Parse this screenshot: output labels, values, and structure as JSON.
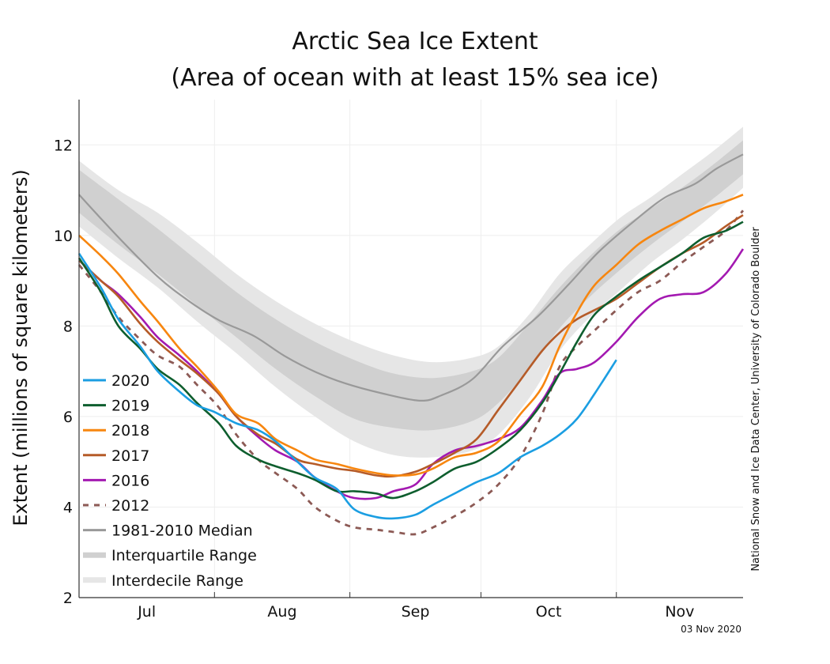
{
  "chart_data": {
    "type": "line",
    "title": "Arctic Sea Ice Extent",
    "subtitle": "(Area of ocean with at least 15% sea ice)",
    "xlabel": "",
    "ylabel": "Extent (millions of square kilometers)",
    "ylim": [
      2,
      13
    ],
    "yticks": [
      2,
      4,
      6,
      8,
      10,
      12
    ],
    "x_unit": "days since Jul 1",
    "xlim": [
      0,
      152
    ],
    "month_ticks": [
      {
        "label": "Jul",
        "start": 0,
        "end": 31
      },
      {
        "label": "Aug",
        "start": 31,
        "end": 62
      },
      {
        "label": "Sep",
        "start": 62,
        "end": 92
      },
      {
        "label": "Oct",
        "start": 92,
        "end": 123
      },
      {
        "label": "Nov",
        "start": 123,
        "end": 152
      }
    ],
    "grid": true,
    "legend_position": "bottom-left",
    "credit": "National Snow and Ice Data Center, University of Colorado Boulder",
    "date_stamp": "03 Nov 2020",
    "bands": [
      {
        "name": "Interdecile Range",
        "color": "#e6e6e6",
        "x": [
          0,
          9,
          18,
          27,
          36,
          45,
          54,
          63,
          72,
          81,
          90,
          96,
          103,
          110,
          117,
          124,
          131,
          138,
          145,
          152
        ],
        "upper": [
          11.65,
          11.0,
          10.5,
          9.85,
          9.15,
          8.55,
          8.05,
          7.65,
          7.35,
          7.2,
          7.3,
          7.55,
          8.25,
          9.15,
          9.8,
          10.4,
          10.85,
          11.35,
          11.85,
          12.4
        ],
        "lower": [
          10.2,
          9.5,
          8.85,
          8.1,
          7.4,
          6.65,
          6.0,
          5.45,
          5.15,
          5.1,
          5.25,
          5.6,
          6.4,
          7.45,
          8.2,
          8.8,
          9.4,
          9.9,
          10.45,
          11.05
        ]
      },
      {
        "name": "Interquartile Range",
        "color": "#d0d0d0",
        "x": [
          0,
          9,
          18,
          27,
          36,
          45,
          54,
          63,
          72,
          81,
          90,
          96,
          103,
          110,
          117,
          124,
          131,
          138,
          145,
          152
        ],
        "upper": [
          11.45,
          10.8,
          10.15,
          9.45,
          8.75,
          8.15,
          7.65,
          7.25,
          6.95,
          6.85,
          7.0,
          7.3,
          8.05,
          8.85,
          9.55,
          10.15,
          10.6,
          11.05,
          11.55,
          12.1
        ],
        "lower": [
          10.5,
          9.8,
          9.15,
          8.45,
          7.75,
          7.05,
          6.45,
          5.95,
          5.75,
          5.7,
          5.9,
          6.3,
          7.05,
          7.95,
          8.65,
          9.25,
          9.8,
          10.3,
          10.8,
          11.35
        ]
      }
    ],
    "series": [
      {
        "name": "1981-2010 Median",
        "color": "#999999",
        "dash": false,
        "x": [
          0,
          9,
          18,
          25,
          32,
          40,
          47,
          54,
          61,
          69,
          78,
          83,
          90,
          97,
          105,
          112,
          119,
          127,
          134,
          141,
          146,
          152
        ],
        "values": [
          10.9,
          9.96,
          9.09,
          8.56,
          8.13,
          7.78,
          7.34,
          6.99,
          6.73,
          6.52,
          6.35,
          6.47,
          6.82,
          7.55,
          8.21,
          8.91,
          9.64,
          10.31,
          10.83,
          11.14,
          11.48,
          11.79
        ]
      },
      {
        "name": "2020",
        "color": "#1b9ee2",
        "dash": false,
        "x": [
          0,
          5,
          9,
          14,
          18,
          23,
          27,
          31,
          36,
          41,
          45,
          50,
          54,
          59,
          63,
          68,
          72,
          77,
          81,
          86,
          91,
          96,
          101,
          106,
          110,
          114,
          118,
          123
        ],
        "values": [
          9.6,
          8.85,
          8.15,
          7.55,
          7.0,
          6.55,
          6.25,
          6.1,
          5.85,
          5.7,
          5.45,
          5.0,
          4.65,
          4.4,
          3.95,
          3.78,
          3.75,
          3.83,
          4.05,
          4.3,
          4.55,
          4.75,
          5.1,
          5.35,
          5.6,
          5.95,
          6.5,
          7.25
        ]
      },
      {
        "name": "2019",
        "color": "#0e5e2e",
        "dash": false,
        "x": [
          0,
          5,
          9,
          14,
          18,
          23,
          27,
          32,
          36,
          41,
          45,
          50,
          54,
          59,
          63,
          68,
          72,
          77,
          81,
          86,
          91,
          96,
          101,
          106,
          110,
          114,
          118,
          123,
          128,
          133,
          138,
          143,
          148,
          152
        ],
        "values": [
          9.5,
          8.75,
          8.0,
          7.5,
          7.05,
          6.7,
          6.3,
          5.85,
          5.35,
          5.05,
          4.9,
          4.75,
          4.6,
          4.35,
          4.35,
          4.3,
          4.2,
          4.35,
          4.55,
          4.85,
          5.0,
          5.3,
          5.7,
          6.3,
          6.95,
          7.65,
          8.25,
          8.65,
          9.0,
          9.3,
          9.6,
          9.95,
          10.1,
          10.3
        ]
      },
      {
        "name": "2018",
        "color": "#f7860f",
        "dash": false,
        "x": [
          0,
          5,
          9,
          14,
          18,
          23,
          27,
          32,
          36,
          41,
          45,
          50,
          54,
          59,
          63,
          68,
          72,
          77,
          81,
          86,
          91,
          96,
          101,
          106,
          110,
          114,
          118,
          123,
          128,
          133,
          138,
          143,
          148,
          152
        ],
        "values": [
          10.0,
          9.55,
          9.15,
          8.55,
          8.1,
          7.5,
          7.1,
          6.55,
          6.05,
          5.85,
          5.5,
          5.25,
          5.05,
          4.95,
          4.85,
          4.75,
          4.7,
          4.72,
          4.85,
          5.1,
          5.2,
          5.45,
          6.05,
          6.65,
          7.55,
          8.3,
          8.9,
          9.35,
          9.8,
          10.1,
          10.35,
          10.6,
          10.75,
          10.9
        ]
      },
      {
        "name": "2017",
        "color": "#b55b28",
        "dash": false,
        "x": [
          0,
          5,
          9,
          14,
          18,
          23,
          27,
          32,
          36,
          41,
          45,
          50,
          54,
          59,
          63,
          68,
          72,
          77,
          81,
          86,
          91,
          96,
          101,
          106,
          110,
          114,
          118,
          123,
          128,
          133,
          138,
          143,
          148,
          152
        ],
        "values": [
          9.45,
          9.0,
          8.65,
          8.05,
          7.65,
          7.25,
          6.95,
          6.5,
          6.0,
          5.6,
          5.4,
          5.05,
          4.95,
          4.85,
          4.8,
          4.7,
          4.68,
          4.78,
          4.95,
          5.2,
          5.5,
          6.15,
          6.8,
          7.45,
          7.85,
          8.15,
          8.35,
          8.6,
          8.95,
          9.3,
          9.6,
          9.85,
          10.2,
          10.45
        ]
      },
      {
        "name": "2016",
        "color": "#a319b1",
        "dash": false,
        "x": [
          0,
          5,
          9,
          14,
          18,
          23,
          27,
          32,
          36,
          41,
          45,
          50,
          54,
          59,
          63,
          68,
          72,
          77,
          81,
          86,
          91,
          96,
          101,
          106,
          110,
          114,
          118,
          123,
          128,
          133,
          138,
          143,
          148,
          152
        ],
        "values": [
          9.45,
          9.0,
          8.7,
          8.2,
          7.75,
          7.35,
          7.0,
          6.5,
          6.0,
          5.55,
          5.25,
          5.0,
          4.65,
          4.35,
          4.2,
          4.2,
          4.35,
          4.5,
          4.95,
          5.25,
          5.35,
          5.5,
          5.75,
          6.35,
          6.95,
          7.05,
          7.2,
          7.65,
          8.2,
          8.6,
          8.7,
          8.75,
          9.15,
          9.7
        ]
      },
      {
        "name": "2012",
        "color": "#8c5a55",
        "dash": true,
        "x": [
          0,
          5,
          9,
          14,
          18,
          23,
          27,
          32,
          36,
          41,
          45,
          50,
          54,
          59,
          63,
          68,
          72,
          77,
          81,
          86,
          91,
          96,
          101,
          106,
          110,
          114,
          118,
          123,
          128,
          133,
          138,
          143,
          148,
          152
        ],
        "values": [
          9.35,
          8.75,
          8.2,
          7.7,
          7.35,
          7.1,
          6.7,
          6.2,
          5.6,
          5.05,
          4.75,
          4.4,
          4.0,
          3.7,
          3.55,
          3.5,
          3.45,
          3.4,
          3.55,
          3.8,
          4.1,
          4.5,
          5.1,
          6.05,
          7.1,
          7.55,
          7.9,
          8.35,
          8.75,
          9.0,
          9.4,
          9.75,
          10.1,
          10.55
        ]
      }
    ],
    "legend": [
      {
        "label": "2020",
        "color": "#1b9ee2",
        "kind": "line"
      },
      {
        "label": "2019",
        "color": "#0e5e2e",
        "kind": "line"
      },
      {
        "label": "2018",
        "color": "#f7860f",
        "kind": "line"
      },
      {
        "label": "2017",
        "color": "#b55b28",
        "kind": "line"
      },
      {
        "label": "2016",
        "color": "#a319b1",
        "kind": "line"
      },
      {
        "label": "2012",
        "color": "#8c5a55",
        "kind": "dash"
      },
      {
        "label": "1981-2010 Median",
        "color": "#999999",
        "kind": "line"
      },
      {
        "label": "Interquartile Range",
        "color": "#d0d0d0",
        "kind": "band"
      },
      {
        "label": "Interdecile Range",
        "color": "#e6e6e6",
        "kind": "band"
      }
    ]
  }
}
